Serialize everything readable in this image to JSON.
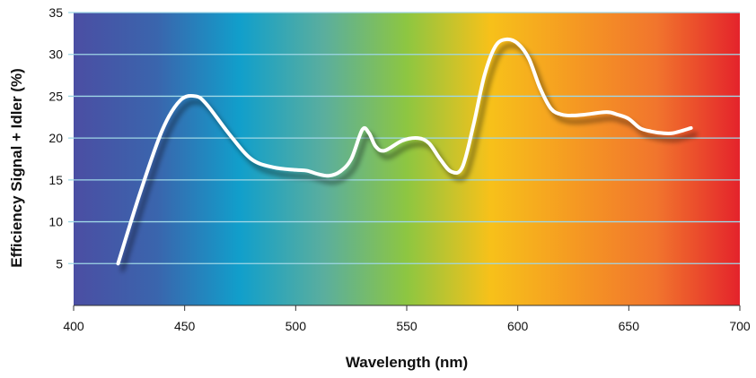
{
  "chart_data": {
    "type": "line",
    "title": "",
    "xlabel": "Wavelength (nm)",
    "ylabel": "Efficiency Signal + Idler (%)",
    "xlim": [
      400,
      700
    ],
    "ylim": [
      0,
      35
    ],
    "xticks": [
      400,
      450,
      500,
      550,
      600,
      650,
      700
    ],
    "yticks": [
      5,
      10,
      15,
      20,
      25,
      30,
      35
    ],
    "grid": true,
    "background": "visible-spectrum gradient (violet to red)",
    "series": [
      {
        "color": "#ffffff",
        "x": [
          420,
          430,
          440,
          448,
          455,
          460,
          470,
          480,
          490,
          500,
          505,
          510,
          515,
          520,
          525,
          530,
          533,
          536,
          540,
          548,
          555,
          560,
          565,
          570,
          575,
          580,
          585,
          590,
          595,
          600,
          605,
          610,
          615,
          620,
          625,
          630,
          640,
          645,
          650,
          655,
          660,
          665,
          670,
          678
        ],
        "y": [
          5,
          13.5,
          21,
          24.5,
          25,
          24,
          20.5,
          17.5,
          16.5,
          16.2,
          16.1,
          15.7,
          15.5,
          16,
          17.5,
          21,
          20.6,
          19,
          18.5,
          19.7,
          20,
          19.4,
          17.5,
          16,
          16.5,
          21.5,
          27.5,
          31,
          31.8,
          31.3,
          29.5,
          26,
          23.5,
          22.8,
          22.7,
          22.8,
          23.1,
          22.8,
          22.3,
          21.2,
          20.8,
          20.6,
          20.6,
          21.2
        ]
      }
    ]
  },
  "colors": {
    "spectrum": [
      "#4b4ea3",
      "#3a65ad",
      "#119fcb",
      "#5aae9e",
      "#8dc641",
      "#f7c11a",
      "#f59a22",
      "#f1752d",
      "#e4232b"
    ],
    "gridline": "#9fd7e6",
    "curve": "#ffffff"
  }
}
